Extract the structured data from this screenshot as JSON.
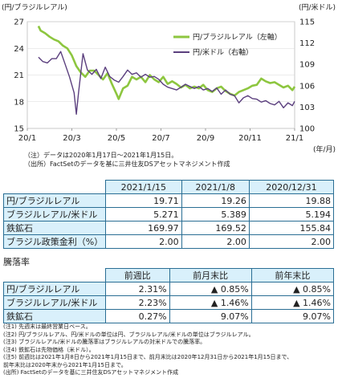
{
  "chart_data": {
    "type": "line",
    "y_left_label": "(円/ブラジルレアル)",
    "y_right_label": "(円/米ドル)",
    "x_unit_label": "(年/月)",
    "y_left_ticks": [
      15,
      18,
      21,
      24,
      27
    ],
    "y_right_ticks": [
      100,
      103,
      106,
      109,
      112,
      115
    ],
    "y_left_lim": [
      15,
      27
    ],
    "y_right_lim": [
      100,
      115
    ],
    "x_ticks": [
      "20/1",
      "20/3",
      "20/5",
      "20/7",
      "20/9",
      "20/11",
      "21/1"
    ],
    "x_tick_months": [
      0,
      2,
      4,
      6,
      8,
      10,
      12
    ],
    "x_lim_months": [
      0,
      12
    ],
    "legend_position": "top-right",
    "series": [
      {
        "name": "円/ブラジルレアル（左軸）",
        "axis": "left",
        "color": "#8dc63f",
        "x": [
          0.5,
          0.6,
          0.8,
          1.0,
          1.2,
          1.4,
          1.6,
          1.8,
          2.0,
          2.2,
          2.4,
          2.6,
          2.8,
          3.0,
          3.2,
          3.4,
          3.6,
          3.8,
          4.0,
          4.1,
          4.3,
          4.5,
          4.7,
          4.9,
          5.1,
          5.3,
          5.5,
          5.7,
          5.9,
          6.1,
          6.3,
          6.5,
          6.7,
          6.9,
          7.1,
          7.3,
          7.5,
          7.7,
          7.9,
          8.1,
          8.3,
          8.5,
          8.7,
          8.9,
          9.1,
          9.3,
          9.5,
          9.7,
          9.9,
          10.1,
          10.3,
          10.5,
          10.7,
          10.9,
          11.1,
          11.3,
          11.5,
          11.7,
          11.9,
          12.0
        ],
        "values": [
          26.5,
          26.0,
          25.7,
          25.3,
          25.0,
          24.8,
          24.3,
          24.0,
          23.2,
          22.0,
          21.3,
          20.8,
          21.5,
          21.5,
          21.0,
          20.5,
          21.2,
          20.0,
          18.9,
          18.3,
          19.5,
          19.8,
          20.8,
          20.5,
          20.8,
          20.2,
          21.0,
          20.5,
          20.2,
          20.8,
          20.0,
          20.3,
          20.0,
          19.6,
          19.9,
          19.5,
          19.7,
          19.5,
          19.9,
          19.3,
          19.1,
          19.5,
          19.7,
          19.2,
          18.9,
          18.7,
          19.1,
          19.3,
          19.5,
          19.8,
          19.9,
          20.6,
          20.3,
          20.1,
          20.2,
          19.9,
          19.6,
          19.8,
          19.3,
          19.7
        ]
      },
      {
        "name": "円/米ドル（右軸）",
        "axis": "right",
        "color": "#5b3f7e",
        "x": [
          0.5,
          0.7,
          0.9,
          1.1,
          1.3,
          1.5,
          1.7,
          1.9,
          2.1,
          2.2,
          2.3,
          2.5,
          2.7,
          2.9,
          3.1,
          3.3,
          3.5,
          3.7,
          3.9,
          4.1,
          4.3,
          4.5,
          4.7,
          4.9,
          5.1,
          5.3,
          5.5,
          5.7,
          5.9,
          6.1,
          6.3,
          6.5,
          6.7,
          6.9,
          7.1,
          7.3,
          7.5,
          7.7,
          7.9,
          8.1,
          8.3,
          8.5,
          8.7,
          8.9,
          9.1,
          9.3,
          9.5,
          9.7,
          9.9,
          10.1,
          10.3,
          10.5,
          10.7,
          10.9,
          11.1,
          11.3,
          11.5,
          11.7,
          11.9,
          12.0
        ],
        "values": [
          110.0,
          109.4,
          109.2,
          109.8,
          109.8,
          110.8,
          109.0,
          107.2,
          105.0,
          102.0,
          105.0,
          110.5,
          108.2,
          107.6,
          108.3,
          107.0,
          108.6,
          107.3,
          106.8,
          106.5,
          107.3,
          108.2,
          107.6,
          107.8,
          107.2,
          107.6,
          107.2,
          107.3,
          106.9,
          106.2,
          105.8,
          105.6,
          105.4,
          105.8,
          106.2,
          105.9,
          105.6,
          105.9,
          105.4,
          105.6,
          105.2,
          105.7,
          104.8,
          105.4,
          104.8,
          104.6,
          103.6,
          104.3,
          104.6,
          104.2,
          104.1,
          103.7,
          103.9,
          103.5,
          103.3,
          103.8,
          102.9,
          103.6,
          103.2,
          103.8
        ]
      }
    ]
  },
  "notes_top": [
    "（注）データは2020年1月17日～2021年1月15日。",
    "（出所）FactSetのデータを基に三井住友DSアセットマネジメント作成"
  ],
  "table1": {
    "headers": [
      "2021/1/15",
      "2021/1/8",
      "2020/12/31"
    ],
    "rows": [
      {
        "label": "円/ブラジルレアル",
        "values": [
          "19.71",
          "19.26",
          "19.88"
        ]
      },
      {
        "label": "ブラジルレアル/米ドル",
        "values": [
          "5.271",
          "5.389",
          "5.194"
        ]
      },
      {
        "label": "鉄鉱石",
        "values": [
          "169.97",
          "169.52",
          "155.84"
        ]
      },
      {
        "label": "ブラジル政策金利（%）",
        "values": [
          "2.00",
          "2.00",
          "2.00"
        ]
      }
    ]
  },
  "caption": "騰落率",
  "table2": {
    "headers": [
      "前週比",
      "前月末比",
      "前年末比"
    ],
    "rows": [
      {
        "label": "円/ブラジルレアル",
        "values": [
          "2.31%",
          "▲ 0.85%",
          "▲ 0.85%"
        ]
      },
      {
        "label": "ブラジルレアル/米ドル",
        "values": [
          "2.23%",
          "▲ 1.46%",
          "▲ 1.46%"
        ]
      },
      {
        "label": "鉄鉱石",
        "values": [
          "0.27%",
          "9.07%",
          "9.07%"
        ]
      }
    ]
  },
  "notes_bottom": [
    "(注1) 先週末は最終営業日ベース。",
    "(注2) 円/ブラジルレアル、円/米ドルの単位は円、ブラジルレアル/米ドルの単位はブラジルレアル。",
    "(注3) ブラジルレアル/米ドルの騰落率はブラジルレアルの対米ドルでの騰落率。",
    "(注4) 鉄鉱石は先物価格（米ドル）。",
    "(注5) 前週比は2021年1月8日から2021年1月15日まで、前月末比は2020年12月31日から2021年1月15日まで、",
    "         前年末比は2020年末から2021年1月15日まで。",
    "(出所) FactSetのデータを基に三井住友DSアセットマネジメント作成"
  ]
}
